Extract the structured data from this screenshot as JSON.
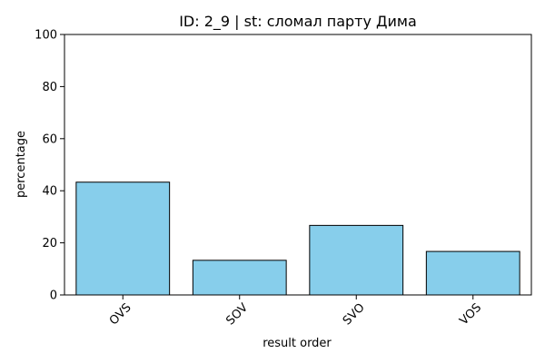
{
  "chart_data": {
    "type": "bar",
    "title": "ID: 2_9 | st: сломал парту Дима",
    "xlabel": "result order",
    "ylabel": "percentage",
    "categories": [
      "OVS",
      "SOV",
      "SVO",
      "VOS"
    ],
    "values": [
      43.3,
      13.3,
      26.7,
      16.7
    ],
    "ylim": [
      0,
      100
    ],
    "yticks": [
      "0",
      "20",
      "40",
      "60",
      "80",
      "100"
    ],
    "grid": false,
    "legend": "none",
    "colors": {
      "bar_fill": "#87ceeb",
      "bar_edge": "#000000"
    }
  }
}
